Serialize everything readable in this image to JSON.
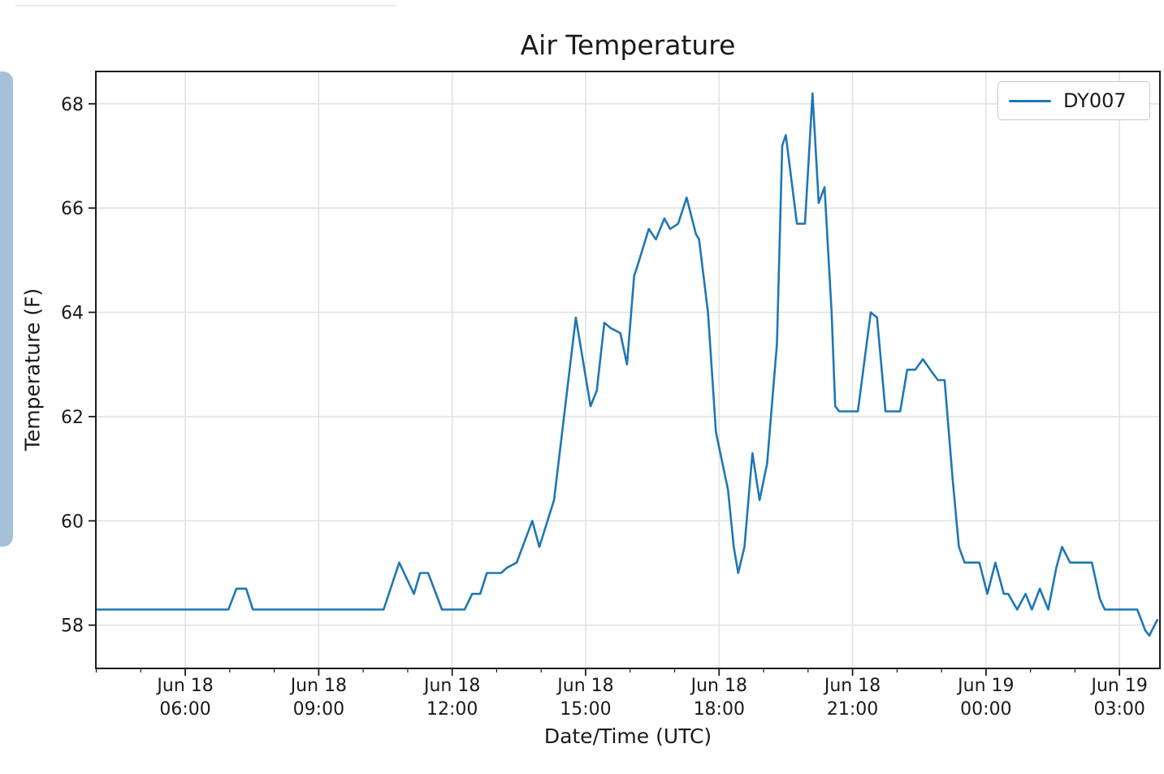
{
  "page": {
    "background": "#ffffff"
  },
  "decorations": {
    "top_divider_color": "#e8e8e8",
    "left_handle_color": "#a6c0d9"
  },
  "chart_data": {
    "type": "line",
    "title": "Air Temperature",
    "xlabel": "Date/Time (UTC)",
    "ylabel": "Temperature (F)",
    "grid": true,
    "legend": {
      "position": "upper right",
      "entries": [
        {
          "label": "DY007",
          "color": "#1f77b4"
        }
      ]
    },
    "style": {
      "grid_color": "#e2e2e2",
      "spine_color": "#1a1a1a",
      "tick_color": "#1a1a1a",
      "text_color": "#1a1a1a",
      "tick_font_px": 22
    },
    "x_unit": "hours since Jun 18 00:00 UTC",
    "xlim": [
      3.99,
      27.91
    ],
    "ylim": [
      57.17,
      68.62
    ],
    "y_ticks": [
      58,
      60,
      62,
      64,
      66,
      68
    ],
    "x_minor_tick_every_hours": 1,
    "x_major_ticks": [
      {
        "hour": 6,
        "label": [
          "Jun 18",
          "06:00"
        ]
      },
      {
        "hour": 9,
        "label": [
          "Jun 18",
          "09:00"
        ]
      },
      {
        "hour": 12,
        "label": [
          "Jun 18",
          "12:00"
        ]
      },
      {
        "hour": 15,
        "label": [
          "Jun 18",
          "15:00"
        ]
      },
      {
        "hour": 18,
        "label": [
          "Jun 18",
          "18:00"
        ]
      },
      {
        "hour": 21,
        "label": [
          "Jun 18",
          "21:00"
        ]
      },
      {
        "hour": 24,
        "label": [
          "Jun 19",
          "00:00"
        ]
      },
      {
        "hour": 27,
        "label": [
          "Jun 19",
          "03:00"
        ]
      }
    ],
    "series": [
      {
        "name": "DY007",
        "color": "#1f77b4",
        "line_width": 2.6,
        "points": [
          [
            4.0,
            58.3
          ],
          [
            4.5,
            58.3
          ],
          [
            5.0,
            58.3
          ],
          [
            5.5,
            58.3
          ],
          [
            6.0,
            58.3
          ],
          [
            6.5,
            58.3
          ],
          [
            6.97,
            58.3
          ],
          [
            7.15,
            58.7
          ],
          [
            7.37,
            58.7
          ],
          [
            7.52,
            58.3
          ],
          [
            8.0,
            58.3
          ],
          [
            8.5,
            58.3
          ],
          [
            9.0,
            58.3
          ],
          [
            9.5,
            58.3
          ],
          [
            10.0,
            58.3
          ],
          [
            10.46,
            58.3
          ],
          [
            10.81,
            59.2
          ],
          [
            11.14,
            58.6
          ],
          [
            11.28,
            59.0
          ],
          [
            11.46,
            59.0
          ],
          [
            11.77,
            58.3
          ],
          [
            12.28,
            58.3
          ],
          [
            12.45,
            58.6
          ],
          [
            12.63,
            58.6
          ],
          [
            12.78,
            59.0
          ],
          [
            13.1,
            59.0
          ],
          [
            13.23,
            59.1
          ],
          [
            13.45,
            59.2
          ],
          [
            13.8,
            60.0
          ],
          [
            13.96,
            59.5
          ],
          [
            14.29,
            60.4
          ],
          [
            14.78,
            63.9
          ],
          [
            15.11,
            62.2
          ],
          [
            15.25,
            62.5
          ],
          [
            15.42,
            63.8
          ],
          [
            15.56,
            63.7
          ],
          [
            15.78,
            63.6
          ],
          [
            15.93,
            63.0
          ],
          [
            16.09,
            64.7
          ],
          [
            16.17,
            64.9
          ],
          [
            16.42,
            65.6
          ],
          [
            16.58,
            65.4
          ],
          [
            16.77,
            65.8
          ],
          [
            16.9,
            65.6
          ],
          [
            17.08,
            65.7
          ],
          [
            17.27,
            66.2
          ],
          [
            17.48,
            65.5
          ],
          [
            17.55,
            65.4
          ],
          [
            17.75,
            64.0
          ],
          [
            17.93,
            61.7
          ],
          [
            18.2,
            60.6
          ],
          [
            18.33,
            59.5
          ],
          [
            18.43,
            59.0
          ],
          [
            18.57,
            59.5
          ],
          [
            18.75,
            61.3
          ],
          [
            18.91,
            60.4
          ],
          [
            19.08,
            61.1
          ],
          [
            19.3,
            63.4
          ],
          [
            19.42,
            67.2
          ],
          [
            19.5,
            67.4
          ],
          [
            19.75,
            65.7
          ],
          [
            19.93,
            65.7
          ],
          [
            20.1,
            68.2
          ],
          [
            20.24,
            66.1
          ],
          [
            20.37,
            66.4
          ],
          [
            20.53,
            64.0
          ],
          [
            20.61,
            62.2
          ],
          [
            20.7,
            62.1
          ],
          [
            21.12,
            62.1
          ],
          [
            21.41,
            64.0
          ],
          [
            21.55,
            63.9
          ],
          [
            21.74,
            62.1
          ],
          [
            22.07,
            62.1
          ],
          [
            22.23,
            62.9
          ],
          [
            22.41,
            62.9
          ],
          [
            22.58,
            63.1
          ],
          [
            22.83,
            62.8
          ],
          [
            22.92,
            62.7
          ],
          [
            23.07,
            62.7
          ],
          [
            23.25,
            60.8
          ],
          [
            23.39,
            59.5
          ],
          [
            23.52,
            59.2
          ],
          [
            23.85,
            59.2
          ],
          [
            24.03,
            58.6
          ],
          [
            24.21,
            59.2
          ],
          [
            24.4,
            58.6
          ],
          [
            24.5,
            58.6
          ],
          [
            24.7,
            58.3
          ],
          [
            24.89,
            58.6
          ],
          [
            25.03,
            58.3
          ],
          [
            25.21,
            58.7
          ],
          [
            25.4,
            58.3
          ],
          [
            25.58,
            59.1
          ],
          [
            25.71,
            59.5
          ],
          [
            25.89,
            59.2
          ],
          [
            26.38,
            59.2
          ],
          [
            26.56,
            58.5
          ],
          [
            26.67,
            58.3
          ],
          [
            27.0,
            58.3
          ],
          [
            27.4,
            58.3
          ],
          [
            27.58,
            57.9
          ],
          [
            27.67,
            57.8
          ],
          [
            27.85,
            58.1
          ]
        ]
      }
    ]
  }
}
